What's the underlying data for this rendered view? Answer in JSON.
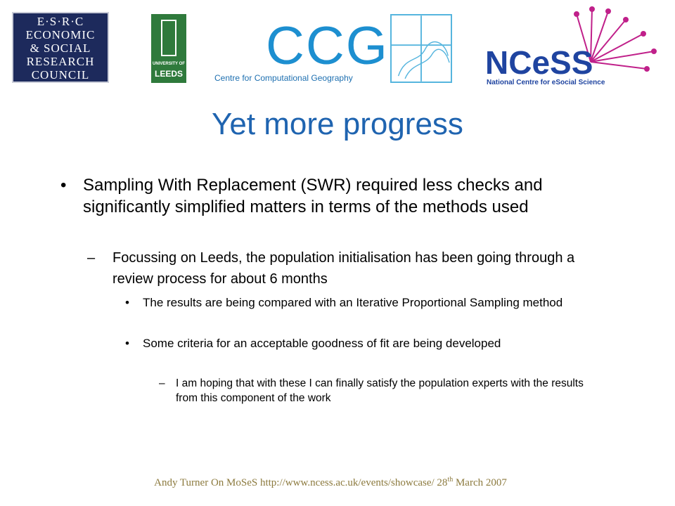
{
  "logos": {
    "esrc": {
      "lines": [
        "E·S·R·C",
        "ECONOMIC",
        "& SOCIAL",
        "RESEARCH",
        "COUNCIL"
      ]
    },
    "leeds": {
      "line1": "UNIVERSITY OF",
      "line2": "LEEDS"
    },
    "ccg": {
      "name": "CCG",
      "full": "Centre for Computational Geography"
    },
    "ncess": {
      "name": "NCeSS",
      "full": "National Centre for eSocial Science"
    }
  },
  "slide": {
    "title": "Yet more progress",
    "bullet": {
      "text": "Sampling With Replacement (SWR) required less checks and significantly simplified matters in terms of the methods used",
      "sub": {
        "text": "Focussing on Leeds, the population initialisation has been going through a review process for about 6 months",
        "points": [
          "The results are being compared with an Iterative Proportional Sampling method",
          "Some criteria for an acceptable goodness of fit are being developed"
        ],
        "detail": "I am hoping that with these I can finally satisfy the population experts with the results from this component of the work"
      }
    },
    "footer": {
      "main": "Andy Turner On MoSeS http://www.ncess.ac.uk/events/showcase/ 28",
      "sup": "th",
      "end": " March 2007"
    }
  }
}
